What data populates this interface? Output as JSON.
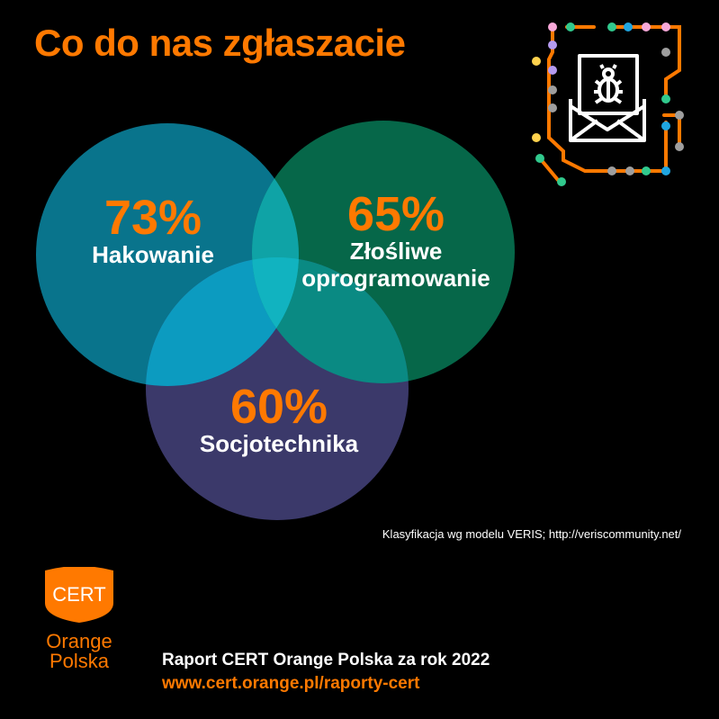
{
  "title": "Co do nas zgłaszacie",
  "diagram": {
    "sets": [
      {
        "percent": "73%",
        "label": "Hakowanie",
        "color": "#0a7e98"
      },
      {
        "percent": "65%",
        "label": "Złośliwe oprogramowanie",
        "label_lines": [
          "Złośliwe",
          "oprogramowanie"
        ],
        "color": "#07704f"
      },
      {
        "percent": "60%",
        "label": "Socjotechnika",
        "color": "#3e3c70"
      }
    ]
  },
  "note": "Klasyfikacja wg modelu VERIS; http://veriscommunity.net/",
  "logo": {
    "badge_text": "CERT",
    "line1": "Orange",
    "line2": "Polska"
  },
  "footer": {
    "line1": "Raport CERT Orange Polska za rok 2022",
    "line2": "www.cert.orange.pl/raporty-cert"
  },
  "colors": {
    "accent": "#ff7900",
    "background": "#000000"
  },
  "icons": [
    "email-bug-icon",
    "circuit-decoration"
  ]
}
